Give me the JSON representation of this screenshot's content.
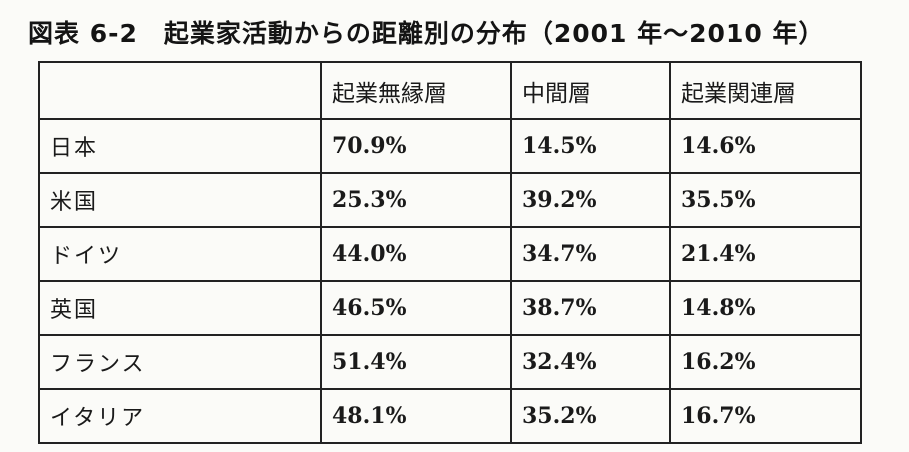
{
  "caption": "図表 6-2　起業家活動からの距離別の分布（2001 年〜2010 年）",
  "table": {
    "headers": [
      "",
      "起業無縁層",
      "中間層",
      "起業関連層"
    ],
    "rows": [
      {
        "country": "日本",
        "values": [
          "70.9%",
          "14.5%",
          "14.6%"
        ]
      },
      {
        "country": "米国",
        "values": [
          "25.3%",
          "39.2%",
          "35.5%"
        ]
      },
      {
        "country": "ドイツ",
        "values": [
          "44.0%",
          "34.7%",
          "21.4%"
        ]
      },
      {
        "country": "英国",
        "values": [
          "46.5%",
          "38.7%",
          "14.8%"
        ]
      },
      {
        "country": "フランス",
        "values": [
          "51.4%",
          "32.4%",
          "16.2%"
        ]
      },
      {
        "country": "イタリア",
        "values": [
          "48.1%",
          "35.2%",
          "16.7%"
        ]
      }
    ]
  }
}
